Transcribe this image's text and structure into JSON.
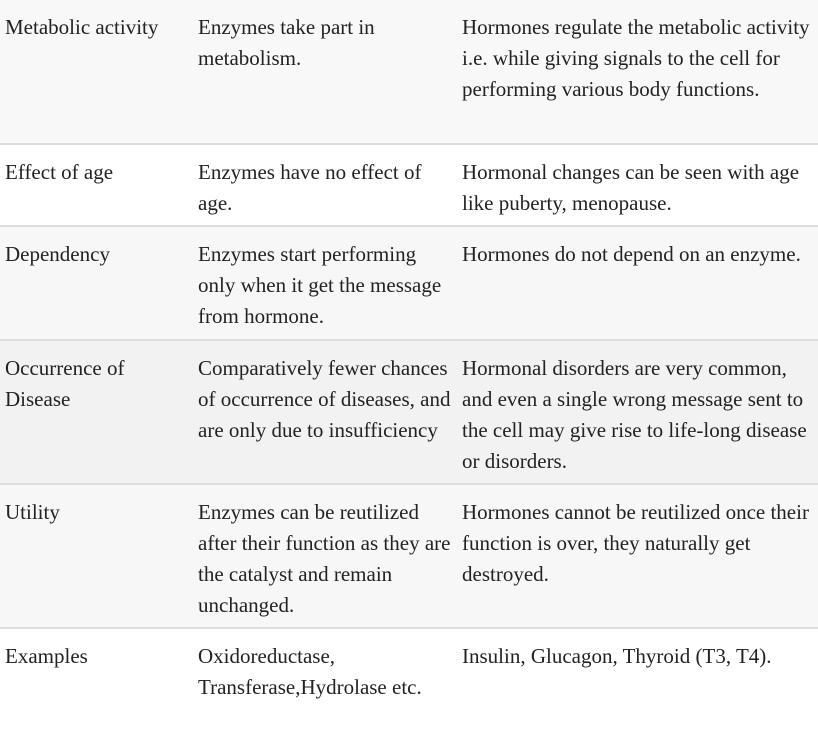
{
  "rows": [
    {
      "feature": "Metabolic activity",
      "enzymes": "Enzymes take part in metabolism.",
      "hormones": "Hormones regulate the metabolic activity i.e. while giving signals to the cell for performing various body functions.",
      "bg": "#f8f8f8"
    },
    {
      "feature": "Effect of age",
      "enzymes": "Enzymes have no effect of age.",
      "hormones": "Hormonal changes can be seen with age like puberty, menopause.",
      "bg": "#ffffff"
    },
    {
      "feature": "Dependency",
      "enzymes": "Enzymes start performing only when it get the message from hormone.",
      "hormones": "Hormones do not depend on an enzyme.",
      "bg": "#f7f7f7"
    },
    {
      "feature": "Occurrence of Disease",
      "enzymes": "Comparatively fewer chances of occurrence of diseases, and are only due to insufficiency",
      "hormones": "Hormonal disorders are very common, and even a single wrong message sent to the cell may give rise to life-long disease or disorders.",
      "bg": "#f2f2f2"
    },
    {
      "feature": "Utility",
      "enzymes": "Enzymes can be reutilized after their function as they are the catalyst and remain unchanged.",
      "hormones": "Hormones cannot be reutilized once their function is over, they naturally get destroyed.",
      "bg": "#f7f7f7"
    },
    {
      "feature": "Examples",
      "enzymes": "Oxidoreductase, Transferase,Hydrolase etc.",
      "hormones": "Insulin, Glucagon, Thyroid (T3, T4).",
      "bg": "#ffffff"
    }
  ]
}
